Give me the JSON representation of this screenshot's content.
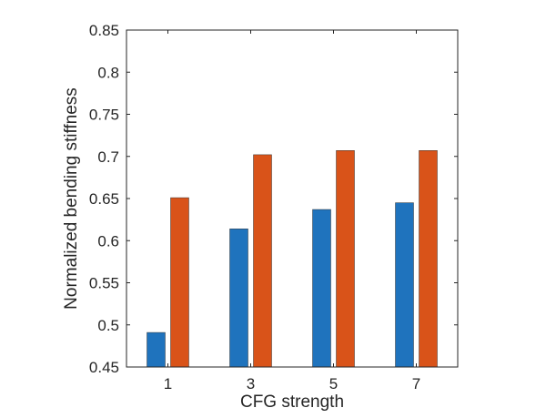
{
  "chart_data": {
    "type": "bar",
    "title": "",
    "xlabel": "CFG strength",
    "ylabel": "Normalized bending stiffness",
    "categories": [
      "1",
      "3",
      "5",
      "7"
    ],
    "series": [
      {
        "name": "Series 1",
        "color": "#1f73bd",
        "values": [
          0.491,
          0.614,
          0.637,
          0.645
        ]
      },
      {
        "name": "Series 2",
        "color": "#d95319",
        "values": [
          0.651,
          0.702,
          0.707,
          0.707
        ]
      }
    ],
    "ylim": [
      0.45,
      0.85
    ],
    "yticks": [
      0.45,
      0.5,
      0.55,
      0.6,
      0.65,
      0.7,
      0.75,
      0.8,
      0.85
    ],
    "ytick_labels": [
      "0.45",
      "0.5",
      "0.55",
      "0.6",
      "0.65",
      "0.7",
      "0.75",
      "0.8",
      "0.85"
    ],
    "grid": false,
    "legend": "none"
  }
}
